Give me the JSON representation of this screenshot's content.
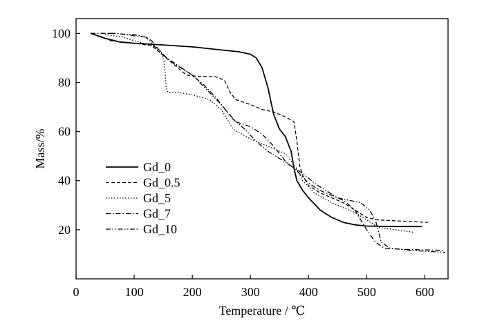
{
  "chart_data": {
    "type": "line",
    "xlabel": "Temperature / ℃",
    "ylabel": "Mass/%",
    "xlim": [
      0,
      640
    ],
    "ylim": [
      0,
      106
    ],
    "xticks": [
      0,
      100,
      200,
      300,
      400,
      500,
      600
    ],
    "yticks": [
      20,
      40,
      60,
      80,
      100
    ],
    "grid": false,
    "legend": "left",
    "series": [
      {
        "name": "Gd_0",
        "style": "solid",
        "points": [
          [
            25,
            100
          ],
          [
            50,
            98
          ],
          [
            75,
            96.5
          ],
          [
            100,
            96
          ],
          [
            150,
            95.3
          ],
          [
            200,
            94.5
          ],
          [
            240,
            93.5
          ],
          [
            280,
            92.5
          ],
          [
            300,
            91.5
          ],
          [
            310,
            90
          ],
          [
            320,
            86
          ],
          [
            330,
            78
          ],
          [
            340,
            67
          ],
          [
            350,
            61
          ],
          [
            360,
            58
          ],
          [
            370,
            52
          ],
          [
            375,
            45
          ],
          [
            380,
            40
          ],
          [
            390,
            36
          ],
          [
            400,
            33
          ],
          [
            420,
            28
          ],
          [
            440,
            25
          ],
          [
            460,
            23
          ],
          [
            480,
            22
          ],
          [
            500,
            21.5
          ],
          [
            550,
            21.3
          ],
          [
            595,
            21.3
          ]
        ]
      },
      {
        "name": "Gd_0.5",
        "style": "dashed",
        "points": [
          [
            40,
            99
          ],
          [
            60,
            97
          ],
          [
            100,
            96
          ],
          [
            130,
            95
          ],
          [
            150,
            91
          ],
          [
            170,
            87
          ],
          [
            190,
            83
          ],
          [
            210,
            82.5
          ],
          [
            240,
            82.3
          ],
          [
            255,
            81
          ],
          [
            265,
            76
          ],
          [
            275,
            73
          ],
          [
            300,
            71
          ],
          [
            320,
            69
          ],
          [
            340,
            68
          ],
          [
            360,
            66
          ],
          [
            375,
            64
          ],
          [
            380,
            56
          ],
          [
            385,
            46
          ],
          [
            390,
            42
          ],
          [
            400,
            38
          ],
          [
            420,
            35
          ],
          [
            440,
            33
          ],
          [
            460,
            31
          ],
          [
            480,
            28
          ],
          [
            500,
            25
          ],
          [
            520,
            24
          ],
          [
            560,
            23.5
          ],
          [
            605,
            23
          ]
        ]
      },
      {
        "name": "Gd_5",
        "style": "dotted",
        "points": [
          [
            50,
            99.5
          ],
          [
            80,
            98.5
          ],
          [
            100,
            97
          ],
          [
            130,
            95
          ],
          [
            145,
            93
          ],
          [
            152,
            88
          ],
          [
            155,
            78
          ],
          [
            158,
            76
          ],
          [
            175,
            76
          ],
          [
            200,
            75
          ],
          [
            230,
            73
          ],
          [
            250,
            69
          ],
          [
            270,
            61
          ],
          [
            300,
            57
          ],
          [
            330,
            54
          ],
          [
            360,
            51
          ],
          [
            380,
            45
          ],
          [
            390,
            40
          ],
          [
            410,
            35
          ],
          [
            440,
            31
          ],
          [
            460,
            29
          ],
          [
            480,
            27
          ],
          [
            500,
            24
          ],
          [
            520,
            21
          ],
          [
            550,
            20
          ],
          [
            580,
            19
          ]
        ]
      },
      {
        "name": "Gd_7",
        "style": "dashdot",
        "points": [
          [
            25,
            100
          ],
          [
            70,
            100
          ],
          [
            100,
            99
          ],
          [
            120,
            98.5
          ],
          [
            130,
            97
          ],
          [
            140,
            94
          ],
          [
            160,
            89
          ],
          [
            180,
            86
          ],
          [
            200,
            83
          ],
          [
            220,
            79
          ],
          [
            240,
            74
          ],
          [
            260,
            68
          ],
          [
            275,
            64
          ],
          [
            300,
            62
          ],
          [
            320,
            59
          ],
          [
            340,
            54
          ],
          [
            360,
            48
          ],
          [
            380,
            44
          ],
          [
            400,
            39
          ],
          [
            420,
            36
          ],
          [
            440,
            34
          ],
          [
            460,
            32
          ],
          [
            480,
            28
          ],
          [
            500,
            20
          ],
          [
            515,
            15
          ],
          [
            530,
            12.5
          ],
          [
            560,
            12
          ],
          [
            600,
            11.8
          ],
          [
            635,
            11.6
          ]
        ]
      },
      {
        "name": "Gd_10",
        "style": "dashdotdot",
        "points": [
          [
            55,
            100
          ],
          [
            100,
            99.5
          ],
          [
            120,
            98.5
          ],
          [
            130,
            96
          ],
          [
            150,
            91
          ],
          [
            175,
            87
          ],
          [
            200,
            83
          ],
          [
            225,
            77
          ],
          [
            250,
            71
          ],
          [
            270,
            65
          ],
          [
            290,
            61
          ],
          [
            310,
            56
          ],
          [
            330,
            52
          ],
          [
            350,
            49
          ],
          [
            370,
            46
          ],
          [
            390,
            43
          ],
          [
            410,
            39
          ],
          [
            430,
            36
          ],
          [
            450,
            33
          ],
          [
            470,
            32
          ],
          [
            490,
            31
          ],
          [
            505,
            28
          ],
          [
            515,
            24
          ],
          [
            525,
            15
          ],
          [
            540,
            12.5
          ],
          [
            580,
            11.5
          ],
          [
            635,
            10.8
          ]
        ]
      }
    ]
  },
  "colors": {
    "line": "#000000",
    "background": "#ffffff"
  }
}
